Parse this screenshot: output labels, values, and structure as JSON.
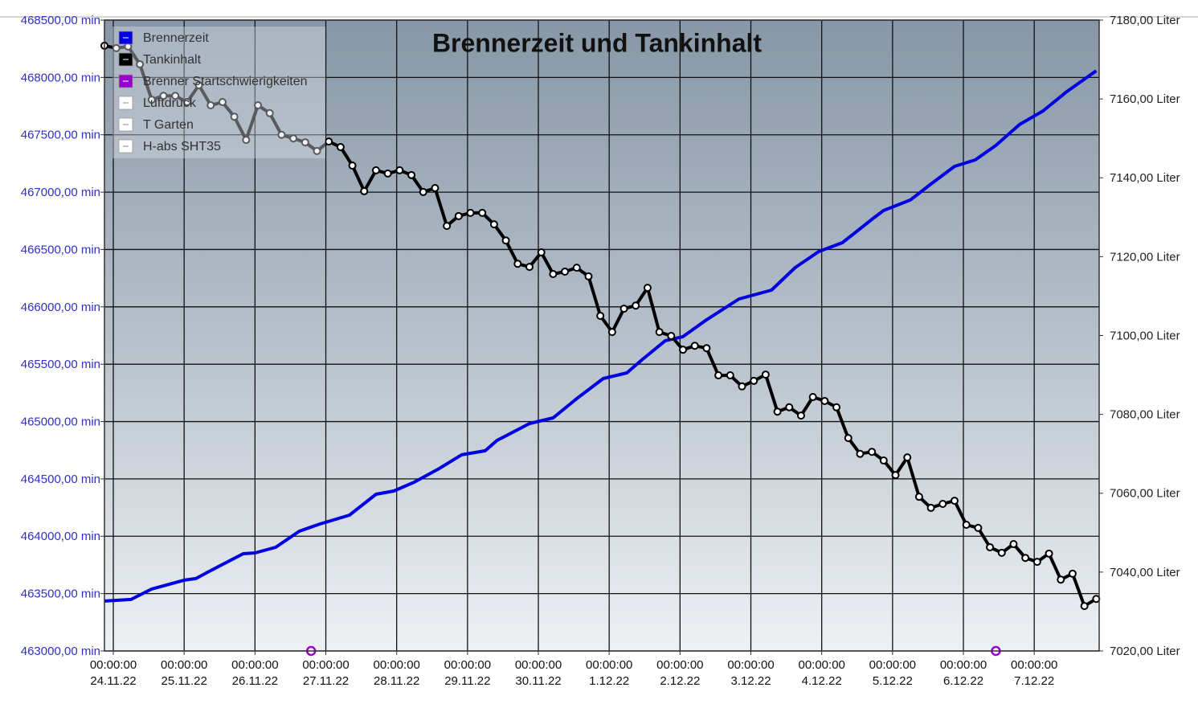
{
  "chart_data": {
    "type": "line",
    "title": "Brennerzeit und Tankinhalt",
    "xlim": [
      -3,
      334
    ],
    "xticks": [
      {
        "value": 0,
        "label": [
          "00:00:00",
          "24.11.22"
        ]
      },
      {
        "value": 24,
        "label": [
          "00:00:00",
          "25.11.22"
        ]
      },
      {
        "value": 48,
        "label": [
          "00:00:00",
          "26.11.22"
        ]
      },
      {
        "value": 72,
        "label": [
          "00:00:00",
          "27.11.22"
        ]
      },
      {
        "value": 96,
        "label": [
          "00:00:00",
          "28.11.22"
        ]
      },
      {
        "value": 120,
        "label": [
          "00:00:00",
          "29.11.22"
        ]
      },
      {
        "value": 144,
        "label": [
          "00:00:00",
          "30.11.22"
        ]
      },
      {
        "value": 168,
        "label": [
          "00:00:00",
          "1.12.22"
        ]
      },
      {
        "value": 192,
        "label": [
          "00:00:00",
          "2.12.22"
        ]
      },
      {
        "value": 216,
        "label": [
          "00:00:00",
          "3.12.22"
        ]
      },
      {
        "value": 240,
        "label": [
          "00:00:00",
          "4.12.22"
        ]
      },
      {
        "value": 264,
        "label": [
          "00:00:00",
          "5.12.22"
        ]
      },
      {
        "value": 288,
        "label": [
          "00:00:00",
          "6.12.22"
        ]
      },
      {
        "value": 312,
        "label": [
          "00:00:00",
          "7.12.22"
        ]
      }
    ],
    "ylim": [
      463000,
      468500
    ],
    "yticks": [
      {
        "value": 463000,
        "label": "463000,00 min"
      },
      {
        "value": 463500,
        "label": "463500,00 min"
      },
      {
        "value": 464000,
        "label": "464000,00 min"
      },
      {
        "value": 464500,
        "label": "464500,00 min"
      },
      {
        "value": 465000,
        "label": "465000,00 min"
      },
      {
        "value": 465500,
        "label": "465500,00 min"
      },
      {
        "value": 466000,
        "label": "466000,00 min"
      },
      {
        "value": 466500,
        "label": "466500,00 min"
      },
      {
        "value": 467000,
        "label": "467000,00 min"
      },
      {
        "value": 467500,
        "label": "467500,00 min"
      },
      {
        "value": 468000,
        "label": "468000,00 min"
      },
      {
        "value": 468500,
        "label": "468500,00 min"
      }
    ],
    "y2lim": [
      7020,
      7180
    ],
    "y2ticks": [
      {
        "value": 7020,
        "label": "7020,00 Liter"
      },
      {
        "value": 7040,
        "label": "7040,00 Liter"
      },
      {
        "value": 7060,
        "label": "7060,00 Liter"
      },
      {
        "value": 7080,
        "label": "7080,00 Liter"
      },
      {
        "value": 7100,
        "label": "7100,00 Liter"
      },
      {
        "value": 7120,
        "label": "7120,00 Liter"
      },
      {
        "value": 7140,
        "label": "7140,00 Liter"
      },
      {
        "value": 7160,
        "label": "7160,00 Liter"
      },
      {
        "value": 7180,
        "label": "7180,00 Liter"
      }
    ],
    "grid": true,
    "legend": "upper left",
    "series": [
      {
        "name": "Brennerzeit",
        "color": "#0000e0",
        "axis": "y",
        "marker": "none",
        "line": true,
        "x": [
          -3,
          6,
          13,
          24,
          28,
          32,
          44,
          48,
          55,
          63,
          70,
          80,
          89,
          95,
          102,
          110,
          118,
          126,
          130,
          141,
          149,
          157,
          166,
          174,
          179,
          187,
          193,
          201,
          212,
          223,
          231,
          239,
          247,
          258,
          261,
          270,
          277,
          285,
          292,
          299,
          307,
          315,
          323,
          333
        ],
        "values": [
          463435,
          463449,
          463540,
          463617,
          463631,
          463687,
          463848,
          463855,
          463904,
          464044,
          464107,
          464184,
          464366,
          464394,
          464472,
          464584,
          464710,
          464745,
          464836,
          464983,
          465032,
          465200,
          465375,
          465424,
          465536,
          465705,
          465740,
          465887,
          466069,
          466146,
          466342,
          466482,
          466559,
          466783,
          466840,
          466931,
          467071,
          467225,
          467281,
          467407,
          467589,
          467708,
          467876,
          468058
        ]
      },
      {
        "name": "Tankinhalt",
        "color": "#000000",
        "axis": "y2",
        "marker": "circle",
        "line": true,
        "x": [
          -3,
          1,
          5,
          9,
          13,
          17,
          21,
          25,
          29,
          33,
          37,
          41,
          45,
          49,
          53,
          57,
          61,
          65,
          69,
          73,
          77,
          81,
          85,
          89,
          93,
          97,
          101,
          105,
          109,
          113,
          117,
          121,
          125,
          129,
          133,
          137,
          141,
          145,
          149,
          153,
          157,
          161,
          165,
          169,
          173,
          177,
          181,
          185,
          189,
          193,
          197,
          201,
          205,
          209,
          213,
          217,
          221,
          225,
          229,
          233,
          237,
          241,
          245,
          249,
          253,
          257,
          261,
          265,
          269,
          273,
          277,
          281,
          285,
          289,
          293,
          297,
          301,
          305,
          309,
          313,
          317,
          321,
          325,
          329,
          333
        ],
        "values": [
          7173.5,
          7172.9,
          7173.3,
          7168.8,
          7159.8,
          7160.8,
          7160.8,
          7159.2,
          7163.5,
          7158.4,
          7159.2,
          7155.5,
          7149.6,
          7158.4,
          7156.4,
          7150.9,
          7150.0,
          7149.0,
          7146.8,
          7149.2,
          7147.8,
          7143.1,
          7136.6,
          7141.9,
          7141.1,
          7141.9,
          7140.7,
          7136.4,
          7137.4,
          7127.8,
          7130.3,
          7131.1,
          7131.1,
          7128.2,
          7124.1,
          7118.2,
          7117.4,
          7121.1,
          7115.6,
          7116.2,
          7117.2,
          7115.0,
          7105.0,
          7100.9,
          7106.8,
          7107.6,
          7112.1,
          7100.9,
          7099.9,
          7096.4,
          7097.4,
          7096.8,
          7089.9,
          7089.9,
          7087.1,
          7088.5,
          7090.1,
          7080.7,
          7081.8,
          7079.7,
          7084.4,
          7083.4,
          7081.8,
          7074.0,
          7070.0,
          7070.5,
          7068.3,
          7064.6,
          7069.1,
          7059.1,
          7056.3,
          7057.3,
          7058.1,
          7052.0,
          7051.2,
          7046.3,
          7044.9,
          7047.1,
          7043.6,
          7042.6,
          7044.7,
          7038.1,
          7039.6,
          7031.4,
          7033.2
        ]
      },
      {
        "name": "Brenner Startschwierigkeiten",
        "color": "#9900cc",
        "axis": "y",
        "marker": "ring",
        "line": false,
        "x": [
          67,
          299
        ],
        "values": [
          463000,
          463000
        ]
      },
      {
        "name": "Luftdruck",
        "color": "#ffffff",
        "axis": "y",
        "marker": "none",
        "line": true,
        "x": [],
        "values": []
      },
      {
        "name": "T Garten",
        "color": "#ffffff",
        "axis": "y",
        "marker": "none",
        "line": true,
        "x": [],
        "values": []
      },
      {
        "name": "H-abs SHT35",
        "color": "#ffffff",
        "axis": "y",
        "marker": "none",
        "line": true,
        "x": [],
        "values": []
      }
    ]
  }
}
